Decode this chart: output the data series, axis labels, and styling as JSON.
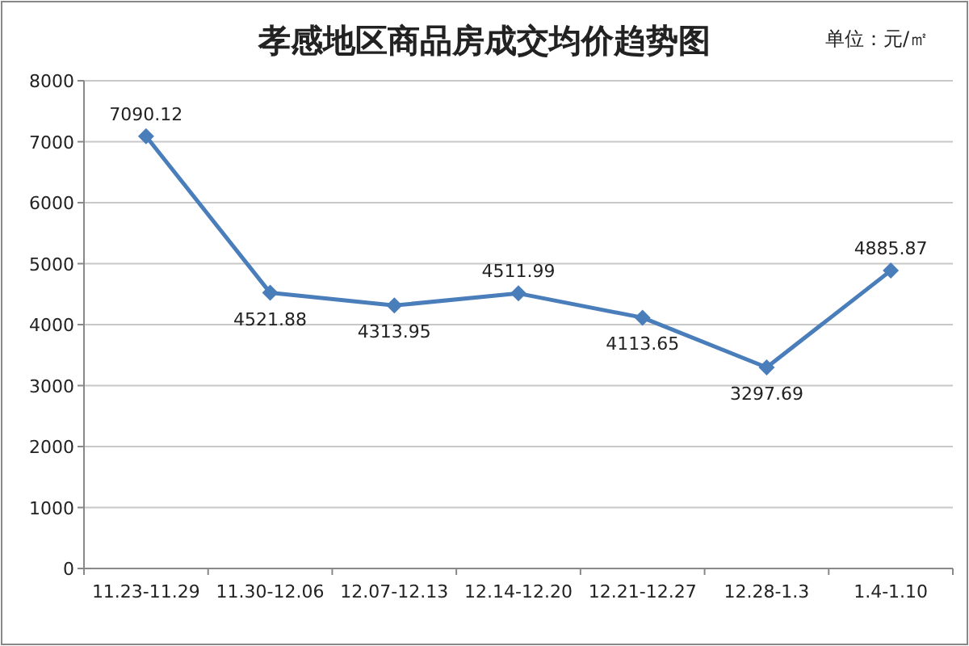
{
  "chart_data": {
    "type": "line",
    "title": "孝感地区商品房成交均价趋势图",
    "annotations": [
      "单位：元/㎡"
    ],
    "categories": [
      "11.23-11.29",
      "11.30-12.06",
      "12.07-12.13",
      "12.14-12.20",
      "12.21-12.27",
      "12.28-1.3",
      "1.4-1.10"
    ],
    "series": [
      {
        "color": "#4a7ebb",
        "values": [
          7090.12,
          4521.88,
          4313.95,
          4511.99,
          4113.65,
          3297.69,
          4885.87
        ]
      }
    ],
    "ylim": [
      0,
      8000
    ],
    "yticks": [
      0,
      1000,
      2000,
      3000,
      4000,
      5000,
      6000,
      7000,
      8000
    ],
    "grid": "y",
    "marker": "diamond",
    "line_style": "solid",
    "data_labels": true
  }
}
